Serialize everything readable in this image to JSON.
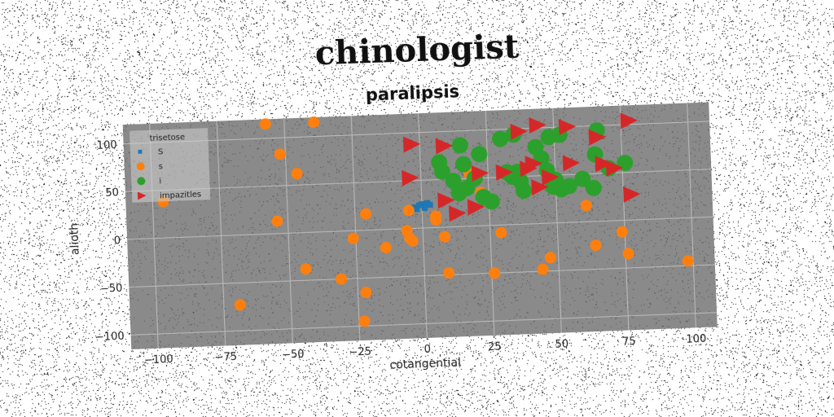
{
  "title": "chinologist",
  "chart_data": {
    "type": "scatter",
    "subtitle": "paralipsis",
    "xlabel": "cotangential",
    "ylabel": "alioth",
    "xlim": [
      -110,
      108
    ],
    "ylim": [
      -115,
      120
    ],
    "xticks": [
      -100,
      -75,
      -50,
      -25,
      0,
      25,
      50,
      75,
      100
    ],
    "yticks": [
      -100,
      -50,
      0,
      50,
      100
    ],
    "grid": true,
    "legend": {
      "title": "trisetose",
      "placement": "top-left"
    },
    "colors": {
      "plot_bg": "#8a8a8a",
      "S": "#1f77b4",
      "s": "#ff7f0e",
      "i": "#2ca02c",
      "impazitles": "#d62728"
    },
    "series": [
      {
        "name": "S",
        "marker": "square",
        "color": "#1f77b4",
        "points": [
          [
            -3,
            22
          ],
          [
            -1,
            24
          ],
          [
            0,
            25
          ],
          [
            1,
            23
          ],
          [
            2,
            26
          ],
          [
            3,
            24
          ],
          [
            -2,
            20
          ],
          [
            1,
            21
          ]
        ]
      },
      {
        "name": "s",
        "marker": "circle",
        "color": "#ff7f0e",
        "points": [
          [
            -57,
            115
          ],
          [
            -39,
            115
          ],
          [
            -52,
            83
          ],
          [
            -46,
            62
          ],
          [
            -96,
            38
          ],
          [
            -54,
            13
          ],
          [
            -21,
            17
          ],
          [
            -26,
            -8
          ],
          [
            -14,
            -19
          ],
          [
            -6,
            -2
          ],
          [
            -5,
            -10
          ],
          [
            -4,
            -13
          ],
          [
            -5,
            19
          ],
          [
            5,
            12
          ],
          [
            5,
            8
          ],
          [
            8,
            -10
          ],
          [
            18,
            55
          ],
          [
            22,
            35
          ],
          [
            29,
            -8
          ],
          [
            61,
            17
          ],
          [
            74,
            -12
          ],
          [
            76,
            -35
          ],
          [
            -44,
            -38
          ],
          [
            -31,
            -50
          ],
          [
            -22,
            -65
          ],
          [
            -23,
            -95
          ],
          [
            -69,
            -73
          ],
          [
            9,
            -48
          ],
          [
            26,
            -50
          ],
          [
            44,
            -48
          ],
          [
            47,
            -36
          ],
          [
            64,
            -25
          ],
          [
            98,
            -45
          ]
        ]
      },
      {
        "name": "i",
        "marker": "circle",
        "color": "#2ca02c",
        "points": [
          [
            30,
            90
          ],
          [
            35,
            94
          ],
          [
            48,
            90
          ],
          [
            52,
            92
          ],
          [
            66,
            95
          ],
          [
            15,
            85
          ],
          [
            16,
            65
          ],
          [
            17,
            40
          ],
          [
            20,
            50
          ],
          [
            23,
            30
          ],
          [
            26,
            25
          ],
          [
            34,
            50
          ],
          [
            36,
            55
          ],
          [
            37,
            45
          ],
          [
            38,
            35
          ],
          [
            43,
            80
          ],
          [
            45,
            68
          ],
          [
            47,
            55
          ],
          [
            49,
            38
          ],
          [
            50,
            45
          ],
          [
            52,
            35
          ],
          [
            55,
            38
          ],
          [
            60,
            45
          ],
          [
            64,
            35
          ],
          [
            65,
            70
          ],
          [
            70,
            55
          ],
          [
            76,
            60
          ],
          [
            7,
            68
          ],
          [
            8,
            58
          ],
          [
            22,
            75
          ],
          [
            32,
            55
          ],
          [
            12,
            48
          ],
          [
            14,
            35
          ]
        ]
      },
      {
        "name": "impazitles",
        "marker": "triangle-right",
        "color": "#d62728",
        "points": [
          [
            -3,
            88
          ],
          [
            9,
            85
          ],
          [
            37,
            97
          ],
          [
            44,
            103
          ],
          [
            55,
            100
          ],
          [
            66,
            88
          ],
          [
            78,
            104
          ],
          [
            -4,
            53
          ],
          [
            9,
            28
          ],
          [
            22,
            55
          ],
          [
            31,
            55
          ],
          [
            40,
            58
          ],
          [
            42,
            63
          ],
          [
            48,
            48
          ],
          [
            56,
            62
          ],
          [
            68,
            60
          ],
          [
            72,
            55
          ],
          [
            78,
            27
          ],
          [
            44,
            38
          ],
          [
            20,
            20
          ],
          [
            13,
            14
          ]
        ]
      }
    ]
  }
}
